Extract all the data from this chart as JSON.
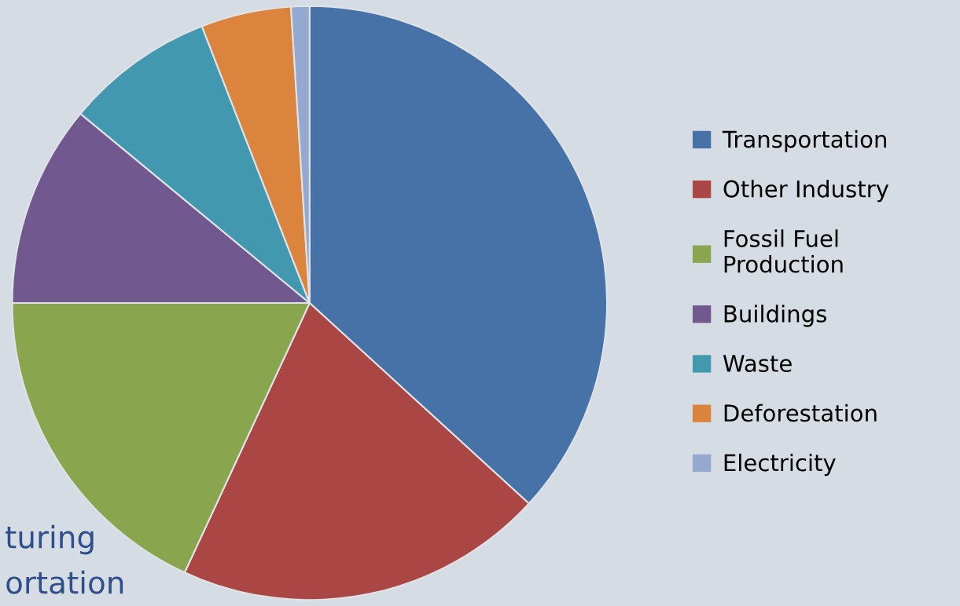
{
  "chart_data": {
    "type": "pie",
    "categories": [
      "Transportation",
      "Other Industry",
      "Fossil Fuel Production",
      "Buildings",
      "Waste",
      "Deforestation",
      "Electricity"
    ],
    "values": [
      36.8,
      20.1,
      18.1,
      11.0,
      8.1,
      4.9,
      1.0
    ],
    "colors": [
      "#4672a8",
      "#aa4744",
      "#89a54e",
      "#71588f",
      "#4198af",
      "#db843d",
      "#93a9cf"
    ],
    "legend": "right",
    "annotations": [
      "turing",
      "ortation"
    ]
  }
}
